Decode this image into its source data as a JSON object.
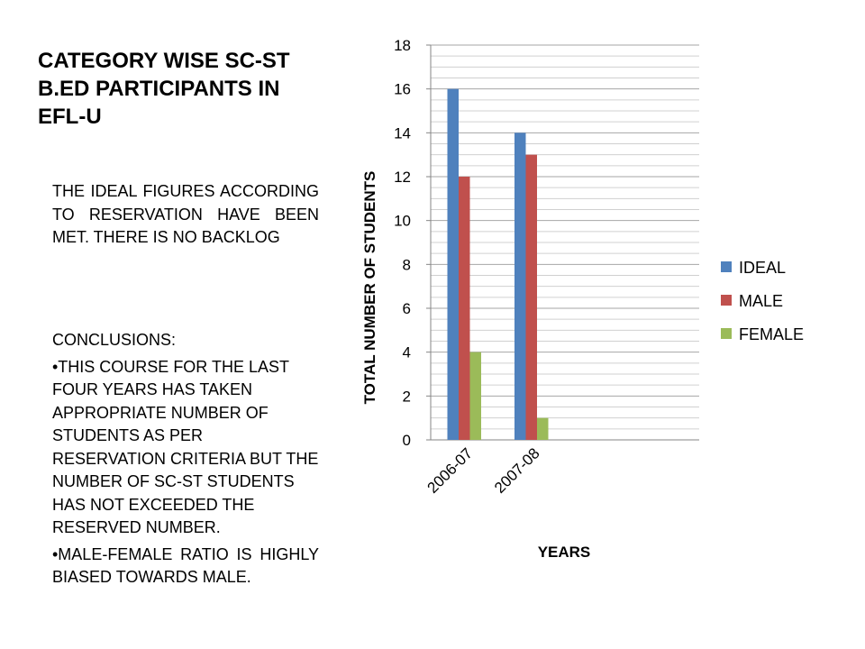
{
  "slide": {
    "title": "CATEGORY WISE SC-ST B.ED PARTICIPANTS IN EFL-U",
    "intro": "THE IDEAL FIGURES ACCORDING TO RESERVATION HAVE BEEN MET. THERE IS NO BACKLOG",
    "conclusions_heading": "CONCLUSIONS:",
    "bullets": [
      "•THIS COURSE FOR THE LAST FOUR YEARS HAS TAKEN APPROPRIATE NUMBER OF STUDENTS AS PER RESERVATION CRITERIA BUT THE NUMBER OF SC-ST STUDENTS HAS NOT EXCEEDED THE RESERVED NUMBER.",
      "•MALE-FEMALE RATIO IS HIGHLY BIASED TOWARDS MALE."
    ]
  },
  "chart_data": {
    "type": "bar",
    "categories": [
      "2006-07",
      "2007-08"
    ],
    "slots": 4,
    "series": [
      {
        "name": "IDEAL",
        "values": [
          16,
          14
        ],
        "color": "#4f81bd"
      },
      {
        "name": "MALE",
        "values": [
          12,
          13
        ],
        "color": "#c0504d"
      },
      {
        "name": "FEMALE",
        "values": [
          4,
          1
        ],
        "color": "#9bbb59"
      }
    ],
    "xlabel": "YEARS",
    "ylabel": "TOTAL NUMBER OF STUDENTS",
    "ylim": [
      0,
      18
    ],
    "yticks": [
      0,
      2,
      4,
      6,
      8,
      10,
      12,
      14,
      16,
      18
    ],
    "minor_grid_step": 0.5,
    "grid": true,
    "legend_position": "right"
  }
}
